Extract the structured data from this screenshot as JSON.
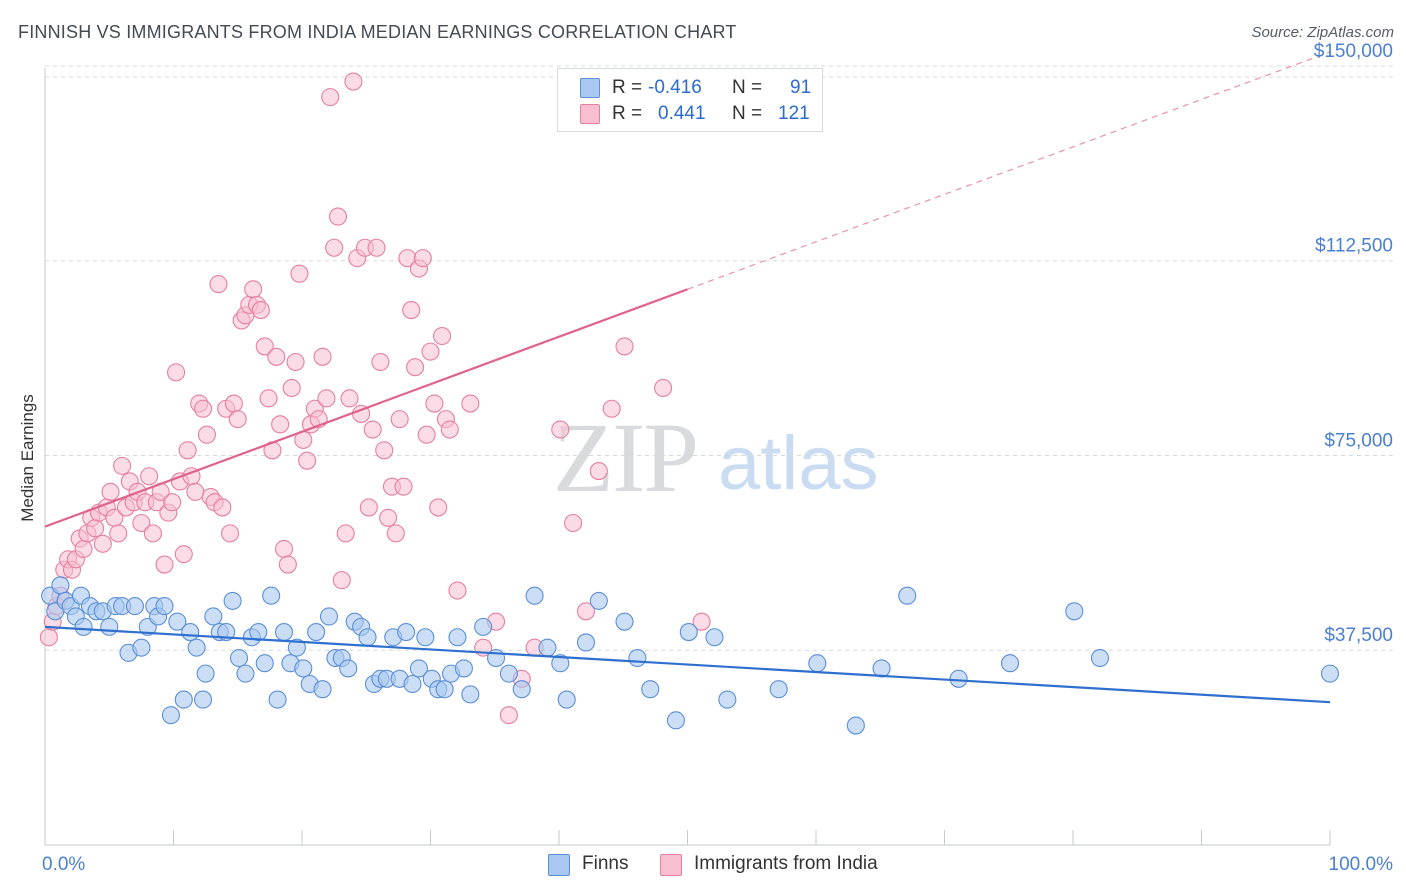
{
  "header": {
    "title": "FINNISH VS IMMIGRANTS FROM INDIA MEDIAN EARNINGS CORRELATION CHART",
    "source": "Source: ZipAtlas.com"
  },
  "watermark": {
    "zip": "ZIP",
    "atlas": "atlas"
  },
  "legend": {
    "rows": [
      {
        "r_label": "R =",
        "r_value": "-0.416",
        "n_label": "N =",
        "n_value": "91",
        "color": "#a9c8f0",
        "border": "#5b8fd8"
      },
      {
        "r_label": "R =",
        "r_value": "0.441",
        "n_label": "N =",
        "n_value": "121",
        "color": "#f8bfd1",
        "border": "#e57fa0"
      }
    ]
  },
  "bottom_legend": {
    "finns": "Finns",
    "india": "Immigrants from India"
  },
  "colors": {
    "finns_fill": "#a9c8f0",
    "finns_stroke": "#5b8fd8",
    "finns_line": "#2f6fcf",
    "india_fill": "#f8bfd1",
    "india_stroke": "#e57fa0",
    "india_line": "#e0638e",
    "grid": "#d5d8dd",
    "tick_text": "#4a7fd1"
  },
  "chart_data": {
    "type": "scatter",
    "title": "FINNISH VS IMMIGRANTS FROM INDIA MEDIAN EARNINGS CORRELATION CHART",
    "xlabel": "",
    "ylabel": "Median Earnings",
    "xlim": [
      0,
      100
    ],
    "ylim": [
      0,
      155000
    ],
    "x_ticks": [
      {
        "value": 0,
        "label": "0.0%"
      },
      {
        "value": 100,
        "label": "100.0%"
      }
    ],
    "y_ticks": [
      {
        "value": 37500,
        "label": "$37,500"
      },
      {
        "value": 75000,
        "label": "$75,000"
      },
      {
        "value": 112500,
        "label": "$112,500"
      },
      {
        "value": 150000,
        "label": "$150,000"
      }
    ],
    "grid": true,
    "legend_position": "top-center",
    "series": [
      {
        "name": "Finns",
        "r": -0.416,
        "n": 91,
        "trend": {
          "x0": 0,
          "y0": 42000,
          "x1": 100,
          "y1": 27500
        },
        "points": [
          [
            0.4,
            48
          ],
          [
            0.8,
            45
          ],
          [
            1.2,
            50
          ],
          [
            1.6,
            47
          ],
          [
            2.0,
            46
          ],
          [
            2.4,
            44
          ],
          [
            2.8,
            48
          ],
          [
            3.0,
            42
          ],
          [
            3.5,
            46
          ],
          [
            4.0,
            45
          ],
          [
            4.5,
            45
          ],
          [
            5.0,
            42
          ],
          [
            5.5,
            46
          ],
          [
            6.0,
            46
          ],
          [
            6.5,
            37
          ],
          [
            7.0,
            46
          ],
          [
            7.5,
            38
          ],
          [
            8.0,
            42
          ],
          [
            8.5,
            46
          ],
          [
            8.8,
            44
          ],
          [
            9.3,
            46
          ],
          [
            9.8,
            25
          ],
          [
            10.3,
            43
          ],
          [
            10.8,
            28
          ],
          [
            11.3,
            41
          ],
          [
            11.8,
            38
          ],
          [
            12.3,
            28
          ],
          [
            12.5,
            33
          ],
          [
            13.1,
            44
          ],
          [
            13.6,
            41
          ],
          [
            14.1,
            41
          ],
          [
            14.6,
            47
          ],
          [
            15.1,
            36
          ],
          [
            15.6,
            33
          ],
          [
            16.1,
            40
          ],
          [
            16.6,
            41
          ],
          [
            17.1,
            35
          ],
          [
            17.6,
            48
          ],
          [
            18.1,
            28
          ],
          [
            18.6,
            41
          ],
          [
            19.1,
            35
          ],
          [
            19.6,
            38
          ],
          [
            20.1,
            34
          ],
          [
            20.6,
            31
          ],
          [
            21.1,
            41
          ],
          [
            21.6,
            30
          ],
          [
            22.1,
            44
          ],
          [
            22.6,
            36
          ],
          [
            23.1,
            36
          ],
          [
            23.6,
            34
          ],
          [
            24.1,
            43
          ],
          [
            24.6,
            42
          ],
          [
            25.1,
            40
          ],
          [
            25.6,
            31
          ],
          [
            26.1,
            32
          ],
          [
            26.6,
            32
          ],
          [
            27.1,
            40
          ],
          [
            27.6,
            32
          ],
          [
            28.1,
            41
          ],
          [
            28.6,
            31
          ],
          [
            29.1,
            34
          ],
          [
            29.6,
            40
          ],
          [
            30.1,
            32
          ],
          [
            30.6,
            30
          ],
          [
            31.1,
            30
          ],
          [
            31.6,
            33
          ],
          [
            32.1,
            40
          ],
          [
            32.6,
            34
          ],
          [
            33.1,
            29
          ],
          [
            34.1,
            42
          ],
          [
            35.1,
            36
          ],
          [
            36.1,
            33
          ],
          [
            37.1,
            30
          ],
          [
            38.1,
            48
          ],
          [
            39.1,
            38
          ],
          [
            40.1,
            35
          ],
          [
            40.6,
            28
          ],
          [
            42.1,
            39
          ],
          [
            43.1,
            47
          ],
          [
            45.1,
            43
          ],
          [
            46.1,
            36
          ],
          [
            47.1,
            30
          ],
          [
            49.1,
            24
          ],
          [
            50.1,
            41
          ],
          [
            52.1,
            40
          ],
          [
            53.1,
            28
          ],
          [
            57.1,
            30
          ],
          [
            60.1,
            35
          ],
          [
            63.1,
            23
          ],
          [
            65.1,
            34
          ],
          [
            67.1,
            48
          ],
          [
            71.1,
            32
          ],
          [
            75.1,
            35
          ],
          [
            80.1,
            45
          ],
          [
            82.1,
            36
          ],
          [
            100.0,
            33
          ]
        ]
      },
      {
        "name": "Immigrants from India",
        "r": 0.441,
        "n": 121,
        "trend": {
          "x0": 0,
          "y0": 61300,
          "x1": 50,
          "y1": 107000,
          "dash_x1": 100,
          "dash_y1": 152700
        },
        "points": [
          [
            0.3,
            40
          ],
          [
            0.6,
            43
          ],
          [
            0.9,
            46
          ],
          [
            1.2,
            48
          ],
          [
            1.5,
            53
          ],
          [
            1.8,
            55
          ],
          [
            2.1,
            53
          ],
          [
            2.4,
            55
          ],
          [
            2.7,
            59
          ],
          [
            3.0,
            57
          ],
          [
            3.3,
            60
          ],
          [
            3.6,
            63
          ],
          [
            3.9,
            61
          ],
          [
            4.2,
            64
          ],
          [
            4.5,
            58
          ],
          [
            4.8,
            65
          ],
          [
            5.1,
            68
          ],
          [
            5.4,
            63
          ],
          [
            5.7,
            60
          ],
          [
            6.0,
            73
          ],
          [
            6.3,
            65
          ],
          [
            6.6,
            70
          ],
          [
            6.9,
            66
          ],
          [
            7.2,
            68
          ],
          [
            7.5,
            62
          ],
          [
            7.8,
            66
          ],
          [
            8.1,
            71
          ],
          [
            8.4,
            60
          ],
          [
            8.7,
            66
          ],
          [
            9.0,
            68
          ],
          [
            9.3,
            54
          ],
          [
            9.6,
            64
          ],
          [
            9.9,
            66
          ],
          [
            10.2,
            91
          ],
          [
            10.5,
            70
          ],
          [
            10.8,
            56
          ],
          [
            11.1,
            76
          ],
          [
            11.4,
            71
          ],
          [
            11.7,
            68
          ],
          [
            12.0,
            85
          ],
          [
            12.3,
            84
          ],
          [
            12.6,
            79
          ],
          [
            12.9,
            67
          ],
          [
            13.2,
            66
          ],
          [
            13.5,
            108
          ],
          [
            13.8,
            65
          ],
          [
            14.1,
            84
          ],
          [
            14.4,
            60
          ],
          [
            14.7,
            85
          ],
          [
            15.0,
            82
          ],
          [
            15.3,
            101
          ],
          [
            15.6,
            102
          ],
          [
            15.9,
            104
          ],
          [
            16.2,
            107
          ],
          [
            16.5,
            104
          ],
          [
            16.8,
            103
          ],
          [
            17.1,
            96
          ],
          [
            17.4,
            86
          ],
          [
            17.7,
            76
          ],
          [
            18.0,
            94
          ],
          [
            18.3,
            81
          ],
          [
            18.6,
            57
          ],
          [
            18.9,
            54
          ],
          [
            19.2,
            88
          ],
          [
            19.5,
            93
          ],
          [
            19.8,
            110
          ],
          [
            20.1,
            78
          ],
          [
            20.4,
            74
          ],
          [
            20.7,
            81
          ],
          [
            21.0,
            84
          ],
          [
            21.3,
            82
          ],
          [
            21.6,
            94
          ],
          [
            21.9,
            86
          ],
          [
            22.2,
            144
          ],
          [
            22.5,
            115
          ],
          [
            22.8,
            121
          ],
          [
            23.1,
            51
          ],
          [
            23.4,
            60
          ],
          [
            23.7,
            86
          ],
          [
            24.0,
            147
          ],
          [
            24.3,
            113
          ],
          [
            24.6,
            83
          ],
          [
            24.9,
            115
          ],
          [
            25.2,
            65
          ],
          [
            25.5,
            80
          ],
          [
            25.8,
            115
          ],
          [
            26.1,
            93
          ],
          [
            26.4,
            76
          ],
          [
            26.7,
            63
          ],
          [
            27.0,
            69
          ],
          [
            27.3,
            60
          ],
          [
            27.6,
            82
          ],
          [
            27.9,
            69
          ],
          [
            28.2,
            113
          ],
          [
            28.5,
            103
          ],
          [
            28.8,
            92
          ],
          [
            29.1,
            111
          ],
          [
            29.4,
            113
          ],
          [
            29.7,
            79
          ],
          [
            30.0,
            95
          ],
          [
            30.3,
            85
          ],
          [
            30.6,
            65
          ],
          [
            30.9,
            98
          ],
          [
            31.2,
            82
          ],
          [
            31.5,
            80
          ],
          [
            32.1,
            49
          ],
          [
            33.1,
            85
          ],
          [
            34.1,
            38
          ],
          [
            35.1,
            43
          ],
          [
            36.1,
            25
          ],
          [
            37.1,
            32
          ],
          [
            38.1,
            38
          ],
          [
            40.1,
            80
          ],
          [
            41.1,
            62
          ],
          [
            42.1,
            45
          ],
          [
            43.1,
            72
          ],
          [
            44.1,
            84
          ],
          [
            45.1,
            96
          ],
          [
            48.1,
            88
          ],
          [
            51.1,
            43
          ]
        ]
      }
    ]
  }
}
